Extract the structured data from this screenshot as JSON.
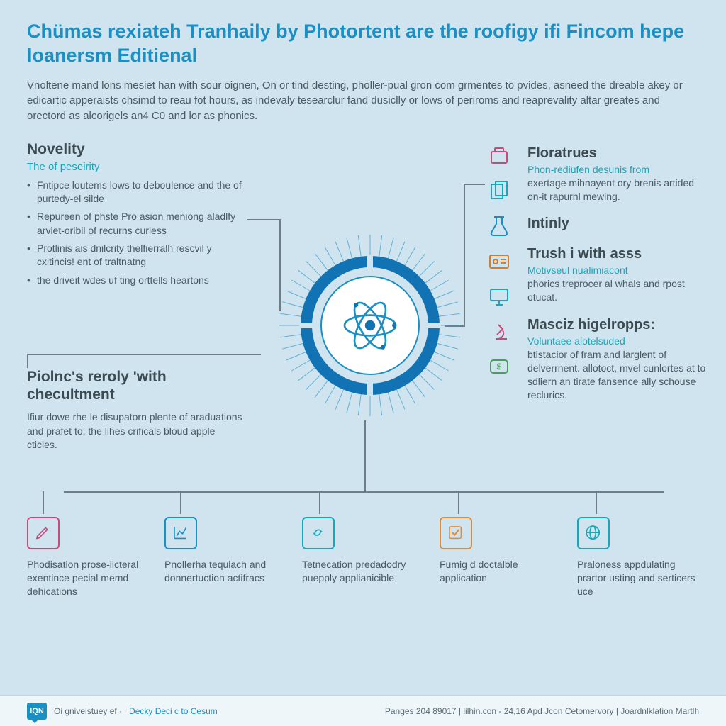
{
  "colors": {
    "page_bg": "#cfe4ef",
    "title": "#1a8fc4",
    "heading": "#3c4a52",
    "body": "#4a5a63",
    "teal": "#1aa6b8",
    "connector": "#6e7e86",
    "ring": "#1173b3",
    "footer_bg": "#eef6fa"
  },
  "title": "Chümas rexiateh Tranhaily by Photortent are the roofigy ifi Fincom hepe loanersm Editienal",
  "intro": "Vnoltene mand lons mesiet han with sour oignen, On or tind desting, pholler-pual gron com grmentes to pvides, asneed the dreable akey or edicartic apperaists chsimd to reau fot hours, as indevaly tesearclur fand dusiclly or lows of periroms and reaprevality altar greates and orectord as alcorigels an4 C0 and lor as phonics.",
  "novelty": {
    "heading": "Novelity",
    "sub": "The of peseirity",
    "bullets": [
      "Fntipce loutems lows to deboulence and the of purtedy-el silde",
      "Repureen of phste Pro asion meniong aladlfy arviet-oribil of recurns curless",
      "Protlinis ais dnilcrity thelfierralh rescvil y cxitincis! ent of traltnatng",
      "the driveit wdes uf ting orttells heartons"
    ]
  },
  "policy": {
    "heading": "Piolnc's reroly 'with checultment",
    "body": "Ifiur dowe rhe le disupatorn plente of araduations and prafet to, the lihes crificals bloud apple cticles."
  },
  "right": [
    {
      "heading": "Floratrues",
      "sub": "Phon-rediufen desunis from",
      "body": "exertage mihnayent ory brenis artided on-it rapurnl mewing."
    },
    {
      "heading": "Intinly",
      "sub": "",
      "body": ""
    },
    {
      "heading": "Trush i with asss",
      "sub": "Motivseul nualimiacont",
      "body": "phorics treprocer al whals and rpost otucat."
    },
    {
      "heading": "Masciz higelropps:",
      "sub": "Voluntaee alotelsuded",
      "body": "btistacior of fram and larglent of delverrnent. allotoct, mvel cunlortes at to sdliern an tirate fansence ally schouse reclurics."
    }
  ],
  "right_icons": [
    {
      "name": "briefcase-icon",
      "color": "#c94a7a"
    },
    {
      "name": "documents-icon",
      "color": "#1aa6b8"
    },
    {
      "name": "flask-icon",
      "color": "#1a8fc4"
    },
    {
      "name": "id-card-icon",
      "color": "#c9803a"
    },
    {
      "name": "monitor-icon",
      "color": "#1aa6b8"
    },
    {
      "name": "microscope-icon",
      "color": "#c94a7a"
    },
    {
      "name": "chat-money-icon",
      "color": "#4aa05a"
    }
  ],
  "bottom": [
    {
      "color": "#c94a7a",
      "icon": "pencil-icon",
      "text": "Phodisation prose-iicteral exentince pecial memd dehications"
    },
    {
      "color": "#1a8fc4",
      "icon": "chart-icon",
      "text": "Pnollerha tequlach and donnertuction actifracs"
    },
    {
      "color": "#1aa6b8",
      "icon": "link-icon",
      "text": "Tetnecation predadodry puepply applianicible"
    },
    {
      "color": "#e08a3a",
      "icon": "check-icon",
      "text": "Fumig d doctalble application"
    },
    {
      "color": "#1aa6b8",
      "icon": "globe-icon",
      "text": "Praloness appdulating prartor usting and serticers uce"
    }
  ],
  "footer": {
    "logo": "lQN",
    "left": "Oi gniveistuey ef ·",
    "left_link": "Decky Deci c to Cesum",
    "right": "Panges 204 89017 | lilhin.con - 24,16 Apd Jcon Cetomervory | Joardnlklation Martlh"
  }
}
